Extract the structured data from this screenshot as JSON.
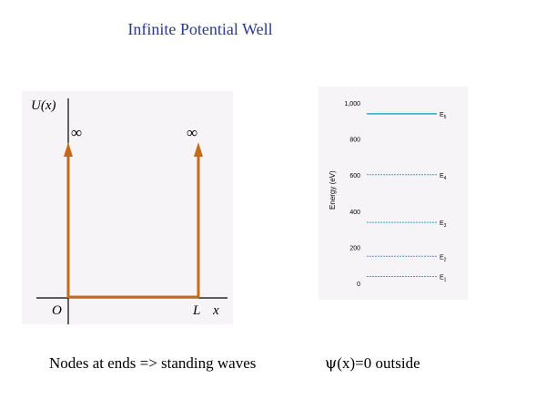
{
  "title": "Infinite Potential Well",
  "well": {
    "y_label": "U(x)",
    "infinity_symbol": "∞",
    "origin_label": "O",
    "l_label": "L",
    "x_label": "x",
    "line_color": "#c46a1a"
  },
  "energy_levels": {
    "ylabel": "Energy (eV)",
    "ylim": [
      0,
      1000
    ],
    "ticks": [
      {
        "value": 0,
        "label": "0"
      },
      {
        "value": 200,
        "label": "200"
      },
      {
        "value": 400,
        "label": "400"
      },
      {
        "value": 600,
        "label": "600"
      },
      {
        "value": 800,
        "label": "800"
      },
      {
        "value": 1000,
        "label": "1,000"
      }
    ],
    "levels": [
      {
        "name": "E",
        "sub": "1",
        "value": 37.6
      },
      {
        "name": "E",
        "sub": "2",
        "value": 150
      },
      {
        "name": "E",
        "sub": "3",
        "value": 338
      },
      {
        "name": "E",
        "sub": "4",
        "value": 602
      },
      {
        "name": "E",
        "sub": "5",
        "value": 940
      }
    ],
    "level_color": "#2aa8c4"
  },
  "captions": {
    "left": "Nodes at ends => standing waves",
    "psi_symbol": "ψ",
    "right_rest": "(x)=0 outside"
  }
}
